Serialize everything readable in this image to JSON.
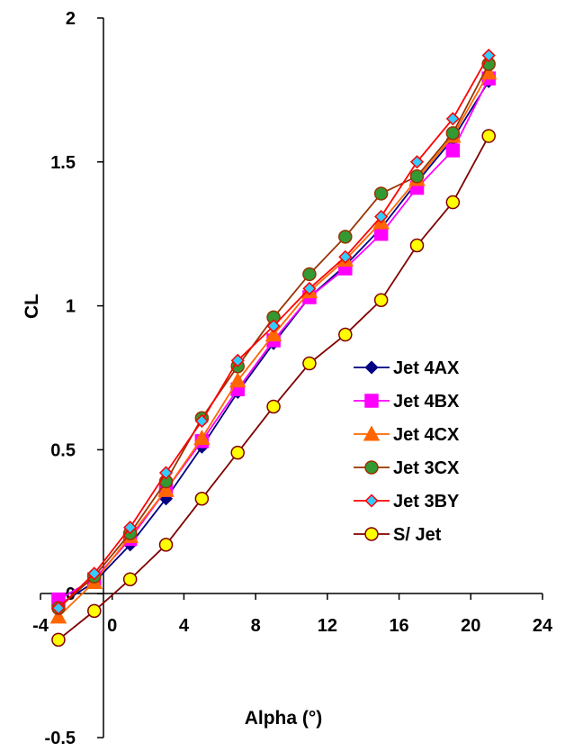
{
  "chart_data": {
    "type": "line",
    "xlabel": "Alpha (°)",
    "ylabel": "CL",
    "xlim": [
      -4,
      24
    ],
    "ylim": [
      -0.5,
      2
    ],
    "x_ticks": [
      -4,
      0,
      4,
      8,
      12,
      16,
      20,
      24
    ],
    "x_tick_labels": [
      "-4",
      "0",
      "4",
      "8",
      "12",
      "16",
      "20",
      "24"
    ],
    "y_ticks": [
      -0.5,
      0,
      0.5,
      1,
      1.5,
      2
    ],
    "y_tick_labels": [
      "-0.5",
      "0",
      "0.5",
      "1",
      "1.5",
      "2"
    ],
    "grid": false,
    "legend_position": "right",
    "series": [
      {
        "name": "Jet  4AX",
        "color": "#000080",
        "fill": "#000080",
        "marker": "diamond",
        "x": [
          -3,
          -1,
          1,
          3,
          5,
          7,
          9,
          11,
          13,
          15,
          17,
          19,
          21
        ],
        "y": [
          -0.04,
          0.04,
          0.17,
          0.33,
          0.51,
          0.7,
          0.87,
          1.03,
          1.14,
          1.27,
          1.43,
          1.58,
          1.78
        ]
      },
      {
        "name": "Jet  4BX",
        "color": "#ff00ff",
        "fill": "#ff00ff",
        "marker": "square",
        "x": [
          -3,
          -1,
          1,
          3,
          5,
          7,
          9,
          11,
          13,
          15,
          17,
          19,
          21
        ],
        "y": [
          -0.02,
          0.05,
          0.19,
          0.36,
          0.53,
          0.71,
          0.88,
          1.03,
          1.13,
          1.25,
          1.41,
          1.54,
          1.79
        ]
      },
      {
        "name": "Jet  4CX",
        "color": "#ff6600",
        "fill": "#ff6600",
        "marker": "triangle",
        "x": [
          -3,
          -1,
          1,
          3,
          5,
          7,
          9,
          11,
          13,
          15,
          17,
          19,
          21
        ],
        "y": [
          -0.08,
          0.04,
          0.2,
          0.36,
          0.54,
          0.74,
          0.9,
          1.05,
          1.16,
          1.29,
          1.44,
          1.59,
          1.81
        ]
      },
      {
        "name": "Jet  3CX",
        "color": "#993300",
        "fill": "#339933",
        "marker": "circle",
        "x": [
          -3,
          -1,
          1,
          3,
          5,
          7,
          9,
          11,
          13,
          15,
          17,
          19,
          21
        ],
        "y": [
          -0.05,
          0.06,
          0.21,
          0.39,
          0.61,
          0.79,
          0.96,
          1.11,
          1.24,
          1.39,
          1.45,
          1.6,
          1.84
        ]
      },
      {
        "name": "Jet  3BY",
        "color": "#ff0000",
        "fill": "#33ccff",
        "marker": "diamond",
        "x": [
          -3,
          -1,
          1,
          3,
          5,
          7,
          9,
          11,
          13,
          15,
          17,
          19,
          21
        ],
        "y": [
          -0.05,
          0.07,
          0.23,
          0.42,
          0.6,
          0.81,
          0.93,
          1.06,
          1.17,
          1.31,
          1.5,
          1.65,
          1.87
        ]
      },
      {
        "name": "S/ Jet",
        "color": "#800000",
        "fill": "#ffff00",
        "marker": "circle",
        "x": [
          -3,
          -1,
          1,
          3,
          5,
          7,
          9,
          11,
          13,
          15,
          17,
          19,
          21
        ],
        "y": [
          -0.16,
          -0.06,
          0.05,
          0.17,
          0.33,
          0.49,
          0.65,
          0.8,
          0.9,
          1.02,
          1.21,
          1.36,
          1.59
        ]
      }
    ]
  }
}
